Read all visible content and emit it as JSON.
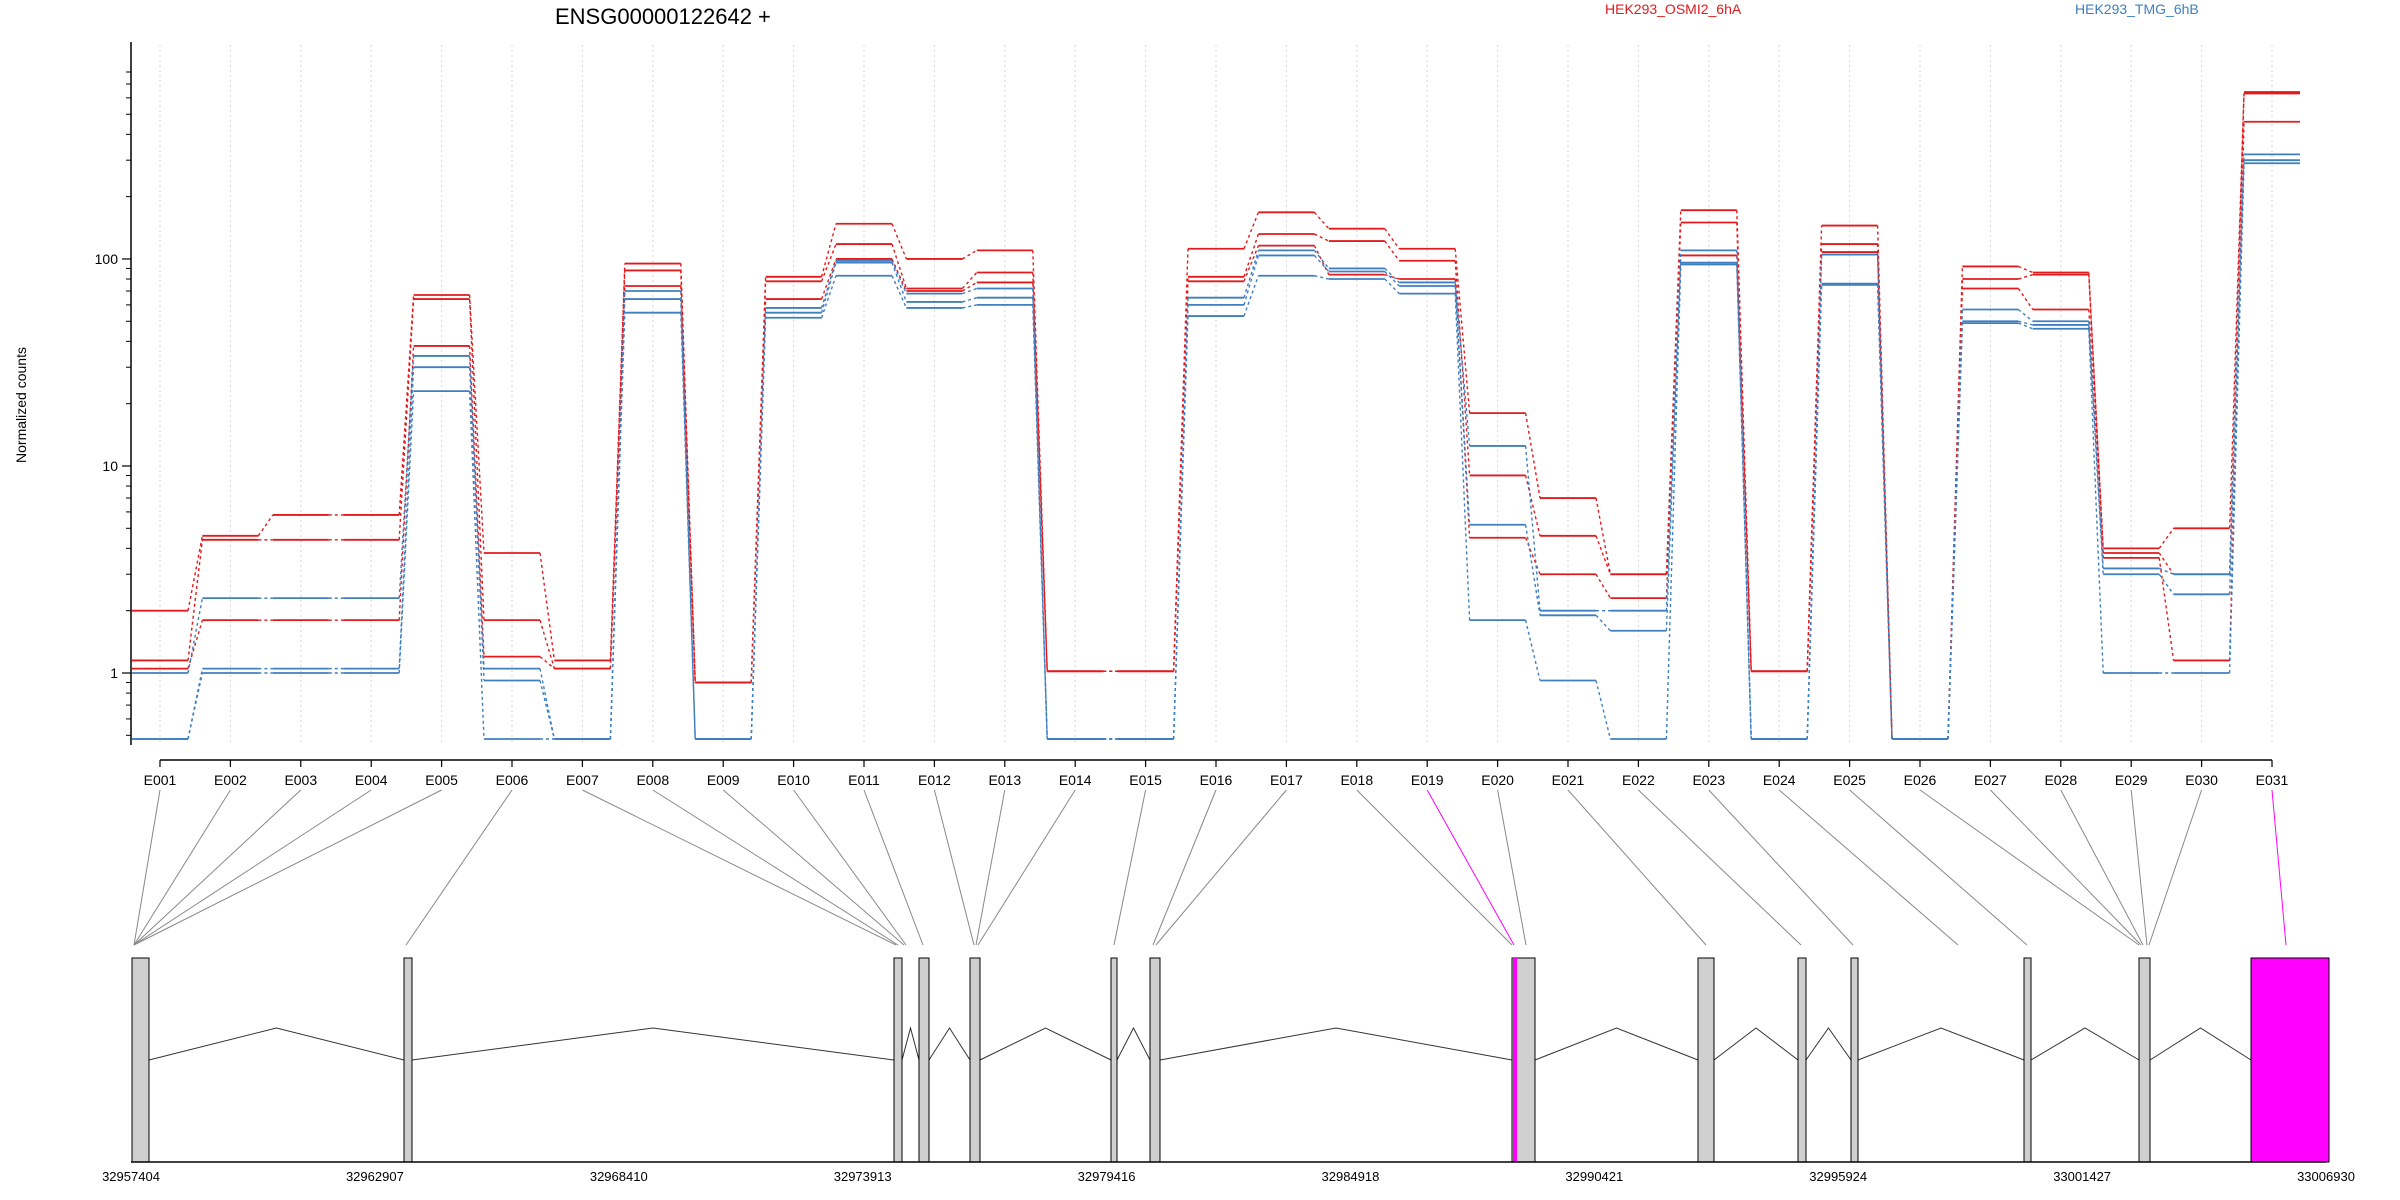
{
  "chart_data": {
    "type": "line",
    "title": "ENSG00000122642 +",
    "ylabel": "Normalized counts",
    "yscale": "log",
    "ylim": [
      0.48,
      800
    ],
    "yticks": [
      1,
      10,
      100
    ],
    "ytick_labels": [
      "1",
      "10",
      "100"
    ],
    "grid": "vertical dotted",
    "legend_placement": "top",
    "categories": [
      "E001",
      "E002",
      "E003",
      "E004",
      "E005",
      "E006",
      "E007",
      "E008",
      "E009",
      "E010",
      "E011",
      "E012",
      "E013",
      "E014",
      "E015",
      "E016",
      "E017",
      "E018",
      "E019",
      "E020",
      "E021",
      "E022",
      "E023",
      "E024",
      "E025",
      "E026",
      "E027",
      "E028",
      "E029",
      "E030",
      "E031"
    ],
    "conditions": [
      {
        "name": "HEK293_OSMI2_6hA",
        "color": "#e31a1c"
      },
      {
        "name": "HEK293_TMG_6hB",
        "color": "#3f7fbf"
      }
    ],
    "series": [
      {
        "condition": "HEK293_OSMI2_6hA",
        "values": [
          2.0,
          4.6,
          5.8,
          5.8,
          67,
          3.8,
          1.15,
          95,
          0.9,
          82,
          148,
          100,
          110,
          1.02,
          1.02,
          112,
          168,
          140,
          112,
          18,
          7.0,
          3.0,
          172,
          1.02,
          145,
          0.48,
          92,
          86,
          4.0,
          5.0,
          640
        ]
      },
      {
        "condition": "HEK293_OSMI2_6hA",
        "values": [
          1.15,
          4.4,
          4.4,
          4.4,
          64,
          1.8,
          1.05,
          88,
          0.9,
          78,
          118,
          72,
          86,
          1.02,
          1.02,
          82,
          132,
          122,
          98,
          9.0,
          4.6,
          3.0,
          150,
          1.02,
          118,
          0.48,
          80,
          84,
          3.8,
          3.0,
          630
        ]
      },
      {
        "condition": "HEK293_OSMI2_6hA",
        "values": [
          1.05,
          1.8,
          1.8,
          1.8,
          38,
          1.2,
          1.05,
          74,
          0.9,
          64,
          100,
          70,
          77,
          1.02,
          1.02,
          78,
          116,
          84,
          80,
          4.5,
          3.0,
          2.3,
          104,
          1.02,
          108,
          0.48,
          72,
          57,
          3.6,
          1.15,
          460
        ]
      },
      {
        "condition": "HEK293_TMG_6hB",
        "values": [
          1.0,
          2.3,
          2.3,
          2.3,
          34,
          1.05,
          0.48,
          70,
          0.48,
          58,
          98,
          68,
          72,
          0.48,
          0.48,
          65,
          110,
          90,
          77,
          12.5,
          2.0,
          2.0,
          110,
          0.48,
          105,
          0.48,
          57,
          50,
          3.2,
          3.0,
          320
        ]
      },
      {
        "condition": "HEK293_TMG_6hB",
        "values": [
          0.48,
          1.05,
          1.05,
          1.05,
          30,
          0.92,
          0.48,
          64,
          0.48,
          55,
          96,
          62,
          65,
          0.48,
          0.48,
          60,
          104,
          87,
          74,
          5.2,
          1.9,
          1.6,
          96,
          0.48,
          76,
          0.48,
          50,
          48,
          3.0,
          2.4,
          300
        ]
      },
      {
        "condition": "HEK293_TMG_6hB",
        "values": [
          0.48,
          1.0,
          1.0,
          1.0,
          23,
          0.48,
          0.48,
          55,
          0.48,
          52,
          83,
          58,
          60,
          0.48,
          0.48,
          53,
          83,
          80,
          68,
          1.8,
          0.92,
          0.48,
          94,
          0.48,
          75,
          0.48,
          49,
          46,
          1.0,
          1.0,
          290
        ]
      }
    ],
    "gene_model": {
      "genomic_ticks": [
        "32957404",
        "32962907",
        "32968410",
        "32973913",
        "32979416",
        "32984918",
        "32990421",
        "32995924",
        "33001427",
        "33006930"
      ],
      "highlighted_exons": [
        "E019",
        "E031"
      ],
      "highlight_color": "#ff00ff"
    }
  }
}
